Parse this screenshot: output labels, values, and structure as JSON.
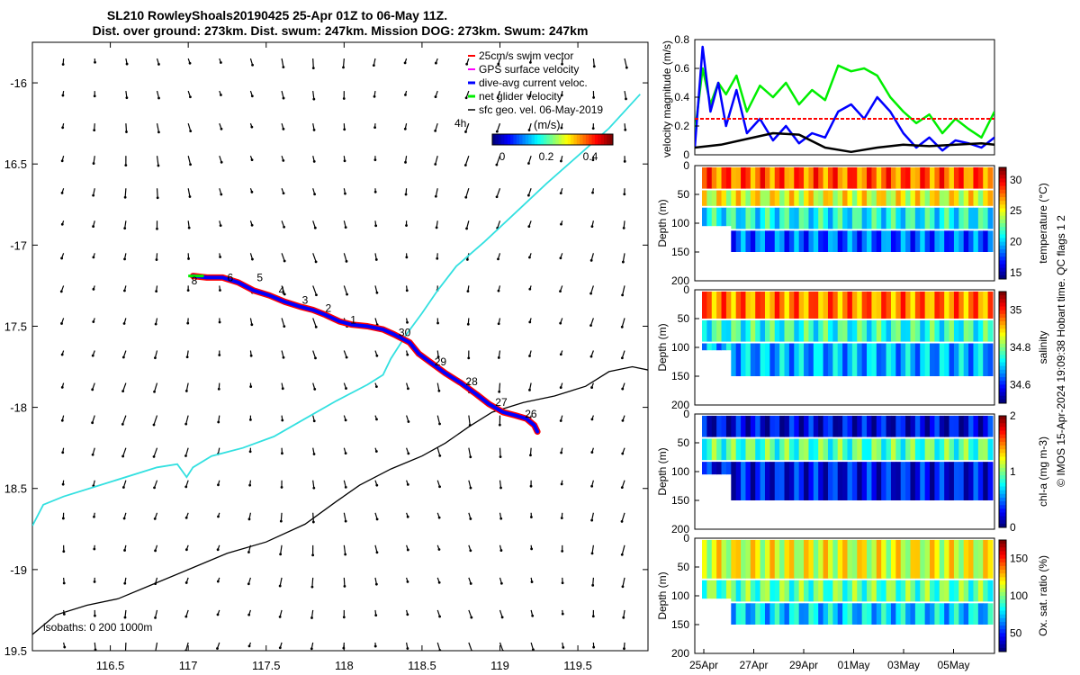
{
  "title_line1": "SL210 RowleyShoals20190425 25-Apr 01Z to 06-May 11Z.",
  "title_line2": "Dist. over ground: 273km. Dist. swum: 247km. Mission DOG: 273km. Swum: 247km",
  "footer_credit": "© IMOS 15-Apr-2024 19:09:38 Hobart time. QC flags 1  2",
  "colors": {
    "swim_vector": "#ff0000",
    "gps_surface": "#ff00ff",
    "dive_avg": "#0000ff",
    "net_glider": "#00ee00",
    "sfc_geo": "#000000",
    "coast_cyan": "#33e0e0",
    "isobath": "#000000"
  },
  "chart_data": [
    {
      "id": "map",
      "type": "scatter",
      "xlim": [
        116.0,
        119.95
      ],
      "ylim": [
        -19.5,
        -15.75
      ],
      "xticks": [
        116.5,
        117,
        117.5,
        118,
        118.5,
        119,
        119.5
      ],
      "yticks": [
        -16,
        -16.5,
        -17,
        -17.5,
        -18,
        -18.5,
        -19,
        -19.5
      ],
      "xtick_labels": [
        "116.5",
        "117",
        "117.5",
        "118",
        "118.5",
        "119",
        "119.5"
      ],
      "ytick_labels": [
        "-16",
        "16.5",
        "-17",
        "17.5",
        "-18",
        "18.5",
        "-19",
        "19.5"
      ],
      "legend": {
        "placement": "top-right",
        "entries": [
          "25cm/s swim vector",
          "GPS surface velocity",
          "dive-avg current veloc.",
          "net glider velocity",
          "sfc geo. vel. 06-May-2019"
        ]
      },
      "colorbar": {
        "label": "(m/s)",
        "ticks": [
          "0",
          "0.2",
          "0.4"
        ],
        "range": [
          0,
          0.5
        ]
      },
      "annotation_4h": "4h",
      "isobaths_label": "isobaths: 0   200  1000m",
      "track": [
        [
          117.03,
          -17.19
        ],
        [
          117.12,
          -17.2
        ],
        [
          117.22,
          -17.2
        ],
        [
          117.32,
          -17.23
        ],
        [
          117.42,
          -17.28
        ],
        [
          117.52,
          -17.31
        ],
        [
          117.62,
          -17.35
        ],
        [
          117.72,
          -17.38
        ],
        [
          117.8,
          -17.4
        ],
        [
          117.88,
          -17.43
        ],
        [
          117.97,
          -17.47
        ],
        [
          118.05,
          -17.49
        ],
        [
          118.15,
          -17.5
        ],
        [
          118.25,
          -17.52
        ],
        [
          118.32,
          -17.55
        ],
        [
          118.42,
          -17.6
        ],
        [
          118.48,
          -17.67
        ],
        [
          118.55,
          -17.72
        ],
        [
          118.65,
          -17.79
        ],
        [
          118.75,
          -17.85
        ],
        [
          118.85,
          -17.92
        ],
        [
          118.93,
          -17.98
        ],
        [
          119.02,
          -18.03
        ],
        [
          119.1,
          -18.05
        ],
        [
          119.17,
          -18.07
        ],
        [
          119.22,
          -18.11
        ],
        [
          119.24,
          -18.15
        ]
      ],
      "day_labels": [
        {
          "text": "8",
          "lon": 117.02,
          "lat": -17.22
        },
        {
          "text": "6",
          "lon": 117.25,
          "lat": -17.2
        },
        {
          "text": "5",
          "lon": 117.44,
          "lat": -17.2
        },
        {
          "text": "4",
          "lon": 117.58,
          "lat": -17.28
        },
        {
          "text": "3",
          "lon": 117.73,
          "lat": -17.34
        },
        {
          "text": "2",
          "lon": 117.88,
          "lat": -17.39
        },
        {
          "text": "1",
          "lon": 118.04,
          "lat": -17.46
        },
        {
          "text": "30",
          "lon": 118.35,
          "lat": -17.54
        },
        {
          "text": "29",
          "lon": 118.58,
          "lat": -17.72
        },
        {
          "text": "28",
          "lon": 118.78,
          "lat": -17.84
        },
        {
          "text": "27",
          "lon": 118.97,
          "lat": -17.97
        },
        {
          "text": "26",
          "lon": 119.16,
          "lat": -18.04
        }
      ],
      "coast_cyan": [
        [
          116.0,
          -18.73
        ],
        [
          116.07,
          -18.6
        ],
        [
          116.2,
          -18.55
        ],
        [
          116.5,
          -18.46
        ],
        [
          116.8,
          -18.37
        ],
        [
          116.93,
          -18.35
        ],
        [
          116.99,
          -18.43
        ],
        [
          117.03,
          -18.37
        ],
        [
          117.15,
          -18.3
        ],
        [
          117.35,
          -18.25
        ],
        [
          117.55,
          -18.18
        ],
        [
          117.75,
          -18.07
        ],
        [
          117.95,
          -17.96
        ],
        [
          118.15,
          -17.86
        ],
        [
          118.25,
          -17.8
        ],
        [
          118.3,
          -17.7
        ],
        [
          118.4,
          -17.55
        ],
        [
          118.5,
          -17.42
        ],
        [
          118.6,
          -17.28
        ],
        [
          118.72,
          -17.13
        ],
        [
          118.9,
          -16.98
        ],
        [
          119.1,
          -16.8
        ],
        [
          119.3,
          -16.62
        ],
        [
          119.5,
          -16.45
        ],
        [
          119.7,
          -16.28
        ],
        [
          119.9,
          -16.07
        ]
      ],
      "isobath_line": [
        [
          116.0,
          -19.4
        ],
        [
          116.15,
          -19.28
        ],
        [
          116.35,
          -19.22
        ],
        [
          116.55,
          -19.18
        ],
        [
          116.75,
          -19.1
        ],
        [
          117.0,
          -19.0
        ],
        [
          117.25,
          -18.9
        ],
        [
          117.5,
          -18.83
        ],
        [
          117.75,
          -18.72
        ],
        [
          117.95,
          -18.58
        ],
        [
          118.1,
          -18.48
        ],
        [
          118.3,
          -18.38
        ],
        [
          118.5,
          -18.3
        ],
        [
          118.65,
          -18.22
        ],
        [
          118.8,
          -18.12
        ],
        [
          118.95,
          -18.03
        ],
        [
          119.15,
          -17.97
        ],
        [
          119.35,
          -17.93
        ],
        [
          119.55,
          -17.87
        ],
        [
          119.7,
          -17.78
        ],
        [
          119.85,
          -17.75
        ],
        [
          119.95,
          -17.77
        ]
      ]
    },
    {
      "id": "velocity",
      "type": "line",
      "ylabel": "velocity magnitude (m/s)",
      "ylim": [
        0,
        0.8
      ],
      "yticks": [
        0,
        0.2,
        0.4,
        0.6,
        0.8
      ],
      "ytick_labels": [
        "0",
        "0.2",
        "0.4",
        "0.6",
        "0.8"
      ],
      "xlim": [
        0,
        11.5
      ],
      "series": [
        {
          "color": "#00ee00",
          "x": [
            0,
            0.3,
            0.6,
            0.9,
            1.2,
            1.6,
            2.0,
            2.5,
            3.0,
            3.5,
            4.0,
            4.5,
            5.0,
            5.5,
            6.0,
            6.5,
            7.0,
            7.5,
            8.0,
            8.5,
            9.0,
            9.5,
            10.0,
            10.5,
            11.0,
            11.5
          ],
          "values": [
            0.15,
            0.6,
            0.35,
            0.5,
            0.42,
            0.55,
            0.3,
            0.48,
            0.4,
            0.5,
            0.35,
            0.45,
            0.38,
            0.62,
            0.58,
            0.6,
            0.55,
            0.4,
            0.3,
            0.22,
            0.28,
            0.15,
            0.25,
            0.18,
            0.12,
            0.3
          ]
        },
        {
          "color": "#0000ff",
          "x": [
            0,
            0.3,
            0.6,
            0.9,
            1.2,
            1.6,
            2.0,
            2.5,
            3.0,
            3.5,
            4.0,
            4.5,
            5.0,
            5.5,
            6.0,
            6.5,
            7.0,
            7.5,
            8.0,
            8.5,
            9.0,
            9.5,
            10.0,
            10.5,
            11.0,
            11.5
          ],
          "values": [
            0.05,
            0.75,
            0.3,
            0.5,
            0.2,
            0.45,
            0.15,
            0.25,
            0.1,
            0.2,
            0.08,
            0.15,
            0.12,
            0.3,
            0.35,
            0.25,
            0.4,
            0.3,
            0.15,
            0.05,
            0.12,
            0.03,
            0.1,
            0.08,
            0.05,
            0.12
          ]
        },
        {
          "color": "#ff0000",
          "x": [
            0,
            0.5,
            11.5
          ],
          "values": [
            0.25,
            0.25,
            0.25
          ],
          "dashed": true
        },
        {
          "color": "#000000",
          "x": [
            0,
            1,
            2,
            3,
            4,
            5,
            6,
            7,
            8,
            9,
            10,
            11,
            11.5
          ],
          "values": [
            0.05,
            0.07,
            0.11,
            0.15,
            0.14,
            0.05,
            0.02,
            0.05,
            0.07,
            0.06,
            0.07,
            0.08,
            0.07
          ]
        }
      ]
    },
    {
      "id": "temperature",
      "type": "heatmap",
      "ylabel": "Depth (m)",
      "colorbar_label": "temperature (°C)",
      "ylim": [
        0,
        200
      ],
      "yticks": [
        "0",
        "50",
        "100",
        "150",
        "200"
      ],
      "cbar_ticks": [
        "30",
        "25",
        "20",
        "15"
      ],
      "cbar_range": [
        14,
        32
      ],
      "bands": [
        {
          "d0": 0,
          "d1": 40,
          "value": 28
        },
        {
          "d0": 40,
          "d1": 70,
          "value": 25
        },
        {
          "d0": 70,
          "d1": 110,
          "value": 21
        },
        {
          "d0": 110,
          "d1": 150,
          "value": 18
        }
      ]
    },
    {
      "id": "salinity",
      "type": "heatmap",
      "ylabel": "Depth (m)",
      "colorbar_label": "salinity",
      "ylim": [
        0,
        200
      ],
      "yticks": [
        "0",
        "50",
        "100",
        "150",
        "200"
      ],
      "cbar_ticks": [
        "35",
        "34.8",
        "34.6"
      ],
      "cbar_range": [
        34.5,
        35.1
      ],
      "bands": [
        {
          "d0": 0,
          "d1": 50,
          "value": 34.95
        },
        {
          "d0": 50,
          "d1": 90,
          "value": 34.75
        },
        {
          "d0": 90,
          "d1": 150,
          "value": 34.68
        }
      ]
    },
    {
      "id": "chla",
      "type": "heatmap",
      "ylabel": "Depth (m)",
      "colorbar_label": "chl-a (mg m-3)",
      "ylim": [
        0,
        200
      ],
      "yticks": [
        "0",
        "50",
        "100",
        "150",
        "200"
      ],
      "cbar_ticks": [
        "2",
        "1",
        "0"
      ],
      "cbar_range": [
        0,
        2
      ],
      "bands": [
        {
          "d0": 0,
          "d1": 40,
          "value": 0.2
        },
        {
          "d0": 40,
          "d1": 80,
          "value": 0.9
        },
        {
          "d0": 80,
          "d1": 150,
          "value": 0.25
        }
      ]
    },
    {
      "id": "oxygen",
      "type": "heatmap",
      "ylabel": "Depth (m)",
      "colorbar_label": "Ox. sat. ratio (%)",
      "ylim": [
        0,
        200
      ],
      "yticks": [
        "0",
        "50",
        "100",
        "150",
        "200"
      ],
      "cbar_ticks": [
        "150",
        "100",
        "50"
      ],
      "cbar_range": [
        25,
        175
      ],
      "xtick_labels": [
        "25Apr",
        "27Apr",
        "29Apr",
        "01May",
        "03May",
        "05May"
      ],
      "bands": [
        {
          "d0": 0,
          "d1": 70,
          "value": 115
        },
        {
          "d0": 70,
          "d1": 110,
          "value": 95
        },
        {
          "d0": 110,
          "d1": 150,
          "value": 75
        }
      ]
    }
  ]
}
